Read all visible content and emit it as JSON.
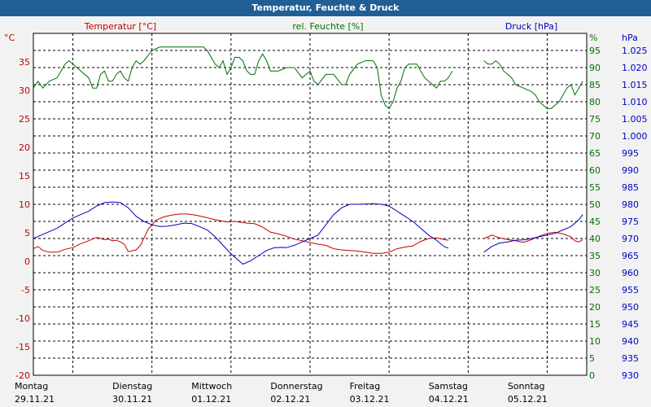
{
  "window": {
    "title": "Temperatur, Feuchte & Druck"
  },
  "colors": {
    "temperature": "#c00000",
    "humidity": "#007000",
    "pressure": "#0000c0",
    "grid": "#000000",
    "plot_bg": "#ffffff",
    "page_bg": "#f2f2f2",
    "titlebar": "#1f5f95"
  },
  "chart_data": {
    "type": "line",
    "title": "Temperatur, Feuchte & Druck",
    "grid": true,
    "x": {
      "day_labels": [
        "Montag",
        "Dienstag",
        "Mittwoch",
        "Donnerstag",
        "Freitag",
        "Samstag",
        "Sonntag"
      ],
      "date_labels": [
        "29.11.21",
        "30.11.21",
        "01.12.21",
        "02.12.21",
        "03.12.21",
        "04.12.21",
        "05.12.21"
      ],
      "range": [
        "29.11.21",
        "06.12.21"
      ]
    },
    "axes": {
      "temperature": {
        "label": "Temperatur [°C]",
        "unit": "°C",
        "range": [
          -20,
          40
        ],
        "ticks": [
          "-20",
          "-15",
          "-10",
          "-5",
          "0",
          "5",
          "10",
          "15",
          "20",
          "25",
          "30",
          "35"
        ]
      },
      "humidity": {
        "label": "rel. Feuchte [%]",
        "unit": "%",
        "range": [
          0,
          100
        ],
        "ticks": [
          "0",
          "5",
          "10",
          "15",
          "20",
          "25",
          "30",
          "35",
          "40",
          "45",
          "50",
          "55",
          "60",
          "65",
          "70",
          "75",
          "80",
          "85",
          "90",
          "95"
        ]
      },
      "pressure": {
        "label": "Druck [hPa]",
        "unit": "hPa",
        "range": [
          930,
          1030
        ],
        "ticks": [
          "930",
          "935",
          "940",
          "945",
          "950",
          "955",
          "960",
          "965",
          "970",
          "975",
          "980",
          "985",
          "990",
          "995",
          "1.000",
          "1.005",
          "1.010",
          "1.015",
          "1.020",
          "1.025"
        ]
      }
    },
    "series": [
      {
        "name": "Temperatur [°C]",
        "axis": "temperature",
        "points": [
          [
            0,
            2.2
          ],
          [
            0.06,
            2.6
          ],
          [
            0.12,
            1.9
          ],
          [
            0.2,
            1.6
          ],
          [
            0.3,
            1.6
          ],
          [
            0.4,
            2.1
          ],
          [
            0.5,
            2.4
          ],
          [
            0.6,
            3.1
          ],
          [
            0.7,
            3.6
          ],
          [
            0.8,
            4.2
          ],
          [
            0.9,
            3.8
          ],
          [
            0.95,
            3.9
          ],
          [
            1.0,
            3.6
          ],
          [
            1.05,
            3.7
          ],
          [
            1.1,
            3.4
          ],
          [
            1.15,
            3.0
          ],
          [
            1.2,
            1.7
          ],
          [
            1.3,
            2.0
          ],
          [
            1.36,
            2.9
          ],
          [
            1.45,
            5.6
          ],
          [
            1.55,
            7.2
          ],
          [
            1.65,
            7.8
          ],
          [
            1.75,
            8.1
          ],
          [
            1.85,
            8.3
          ],
          [
            1.95,
            8.3
          ],
          [
            2.05,
            8.1
          ],
          [
            2.15,
            7.8
          ],
          [
            2.3,
            7.3
          ],
          [
            2.45,
            6.9
          ],
          [
            2.55,
            7.0
          ],
          [
            2.7,
            6.7
          ],
          [
            2.8,
            6.6
          ],
          [
            2.9,
            6.0
          ],
          [
            3.0,
            5.1
          ],
          [
            3.1,
            4.8
          ],
          [
            3.2,
            4.4
          ],
          [
            3.3,
            3.9
          ],
          [
            3.4,
            3.6
          ],
          [
            3.5,
            3.3
          ],
          [
            3.6,
            3.0
          ],
          [
            3.7,
            2.8
          ],
          [
            3.8,
            2.2
          ],
          [
            3.9,
            2.0
          ],
          [
            4.0,
            1.9
          ],
          [
            4.1,
            1.8
          ],
          [
            4.2,
            1.6
          ],
          [
            4.3,
            1.4
          ],
          [
            4.4,
            1.4
          ],
          [
            4.5,
            1.6
          ],
          [
            4.6,
            2.2
          ],
          [
            4.7,
            2.5
          ],
          [
            4.8,
            2.7
          ],
          [
            4.9,
            3.5
          ],
          [
            5.0,
            4.0
          ],
          [
            5.1,
            4.1
          ],
          [
            5.2,
            3.8
          ],
          [
            5.25,
            3.7
          ],
          null,
          [
            5.7,
            4.0
          ],
          [
            5.8,
            4.6
          ],
          [
            5.9,
            4.1
          ],
          [
            6.0,
            3.8
          ],
          [
            6.1,
            3.6
          ],
          [
            6.2,
            3.3
          ],
          [
            6.3,
            3.8
          ],
          [
            6.4,
            4.4
          ],
          [
            6.5,
            4.9
          ],
          [
            6.6,
            5.1
          ],
          [
            6.7,
            4.8
          ],
          [
            6.8,
            4.3
          ],
          [
            6.85,
            3.6
          ],
          [
            6.9,
            3.4
          ],
          [
            6.95,
            3.8
          ]
        ]
      },
      {
        "name": "rel. Feuchte [%]",
        "axis": "humidity",
        "points": [
          [
            0,
            84
          ],
          [
            0.06,
            86
          ],
          [
            0.12,
            84
          ],
          [
            0.2,
            86
          ],
          [
            0.3,
            87
          ],
          [
            0.4,
            91
          ],
          [
            0.45,
            92
          ],
          [
            0.5,
            91
          ],
          [
            0.6,
            89
          ],
          [
            0.7,
            87
          ],
          [
            0.75,
            84
          ],
          [
            0.8,
            84
          ],
          [
            0.85,
            88
          ],
          [
            0.9,
            89
          ],
          [
            0.95,
            86
          ],
          [
            1.0,
            86
          ],
          [
            1.05,
            88
          ],
          [
            1.1,
            89
          ],
          [
            1.15,
            87
          ],
          [
            1.2,
            86
          ],
          [
            1.25,
            90
          ],
          [
            1.3,
            92
          ],
          [
            1.35,
            91
          ],
          [
            1.4,
            92
          ],
          [
            1.5,
            95
          ],
          [
            1.6,
            96
          ],
          [
            1.75,
            96
          ],
          [
            1.9,
            96
          ],
          [
            2.05,
            96
          ],
          [
            2.15,
            96
          ],
          [
            2.2,
            95
          ],
          [
            2.3,
            91
          ],
          [
            2.35,
            90
          ],
          [
            2.4,
            92
          ],
          [
            2.45,
            88
          ],
          [
            2.5,
            90
          ],
          [
            2.55,
            93
          ],
          [
            2.6,
            93
          ],
          [
            2.65,
            92
          ],
          [
            2.7,
            89
          ],
          [
            2.75,
            88
          ],
          [
            2.8,
            88
          ],
          [
            2.85,
            92
          ],
          [
            2.9,
            94
          ],
          [
            2.95,
            92
          ],
          [
            3.0,
            89
          ],
          [
            3.1,
            89
          ],
          [
            3.2,
            90
          ],
          [
            3.3,
            90
          ],
          [
            3.4,
            87
          ],
          [
            3.5,
            89
          ],
          [
            3.55,
            86
          ],
          [
            3.6,
            85
          ],
          [
            3.7,
            88
          ],
          [
            3.8,
            88
          ],
          [
            3.9,
            85
          ],
          [
            3.95,
            85
          ],
          [
            4.0,
            88
          ],
          [
            4.1,
            91
          ],
          [
            4.2,
            92
          ],
          [
            4.3,
            92
          ],
          [
            4.35,
            90
          ],
          [
            4.4,
            82
          ],
          [
            4.45,
            79
          ],
          [
            4.5,
            78
          ],
          [
            4.55,
            80
          ],
          [
            4.6,
            84
          ],
          [
            4.65,
            86
          ],
          [
            4.7,
            90
          ],
          [
            4.75,
            91
          ],
          [
            4.85,
            91
          ],
          [
            4.9,
            89
          ],
          [
            4.95,
            87
          ],
          [
            5.0,
            86
          ],
          [
            5.1,
            84
          ],
          [
            5.15,
            86
          ],
          [
            5.2,
            86
          ],
          [
            5.25,
            87
          ],
          [
            5.3,
            89
          ],
          null,
          [
            5.7,
            92
          ],
          [
            5.75,
            91
          ],
          [
            5.8,
            91
          ],
          [
            5.85,
            92
          ],
          [
            5.9,
            91
          ],
          [
            5.95,
            89
          ],
          [
            6.0,
            88
          ],
          [
            6.05,
            87
          ],
          [
            6.1,
            85
          ],
          [
            6.2,
            84
          ],
          [
            6.3,
            83
          ],
          [
            6.35,
            82
          ],
          [
            6.4,
            80
          ],
          [
            6.45,
            79
          ],
          [
            6.5,
            78
          ],
          [
            6.55,
            78
          ],
          [
            6.6,
            79
          ],
          [
            6.65,
            80
          ],
          [
            6.7,
            82
          ],
          [
            6.75,
            84
          ],
          [
            6.8,
            85
          ],
          [
            6.85,
            82
          ],
          [
            6.9,
            84
          ],
          [
            6.95,
            86
          ]
        ]
      },
      {
        "name": "Druck [hPa]",
        "axis": "pressure",
        "points": [
          [
            0,
            970
          ],
          [
            0.1,
            971
          ],
          [
            0.2,
            972
          ],
          [
            0.3,
            973
          ],
          [
            0.4,
            974.5
          ],
          [
            0.5,
            976
          ],
          [
            0.6,
            977
          ],
          [
            0.7,
            978
          ],
          [
            0.8,
            979.5
          ],
          [
            0.9,
            980.5
          ],
          [
            1.0,
            980.7
          ],
          [
            1.1,
            980.5
          ],
          [
            1.2,
            979
          ],
          [
            1.3,
            976.5
          ],
          [
            1.4,
            975
          ],
          [
            1.5,
            974
          ],
          [
            1.6,
            973.5
          ],
          [
            1.7,
            973.6
          ],
          [
            1.8,
            974
          ],
          [
            1.9,
            974.5
          ],
          [
            2.0,
            974.4
          ],
          [
            2.1,
            973.5
          ],
          [
            2.2,
            972.5
          ],
          [
            2.3,
            970.5
          ],
          [
            2.4,
            968
          ],
          [
            2.5,
            965.5
          ],
          [
            2.6,
            963.5
          ],
          [
            2.65,
            962.5
          ],
          [
            2.75,
            963.5
          ],
          [
            2.85,
            965
          ],
          [
            2.95,
            966.5
          ],
          [
            3.05,
            967.3
          ],
          [
            3.15,
            967.4
          ],
          [
            3.2,
            967.3
          ],
          [
            3.3,
            968
          ],
          [
            3.4,
            969
          ],
          [
            3.5,
            970
          ],
          [
            3.6,
            971
          ],
          [
            3.7,
            974
          ],
          [
            3.8,
            977
          ],
          [
            3.9,
            979
          ],
          [
            4.0,
            980
          ],
          [
            4.1,
            980
          ],
          [
            4.2,
            980.1
          ],
          [
            4.3,
            980.2
          ],
          [
            4.4,
            980
          ],
          [
            4.5,
            979.5
          ],
          [
            4.6,
            978
          ],
          [
            4.7,
            976.5
          ],
          [
            4.8,
            975
          ],
          [
            4.9,
            973
          ],
          [
            5.0,
            971
          ],
          [
            5.1,
            969.5
          ],
          [
            5.15,
            968.5
          ],
          [
            5.2,
            967.6
          ],
          [
            5.25,
            967.2
          ],
          null,
          [
            5.7,
            966
          ],
          [
            5.8,
            967.7
          ],
          [
            5.9,
            968.7
          ],
          [
            6.0,
            969
          ],
          [
            6.1,
            969.5
          ],
          [
            6.2,
            969.6
          ],
          [
            6.3,
            970
          ],
          [
            6.4,
            970.5
          ],
          [
            6.5,
            971
          ],
          [
            6.6,
            971.5
          ],
          [
            6.7,
            972.5
          ],
          [
            6.8,
            973.5
          ],
          [
            6.9,
            975.5
          ],
          [
            6.95,
            977
          ]
        ]
      }
    ]
  }
}
